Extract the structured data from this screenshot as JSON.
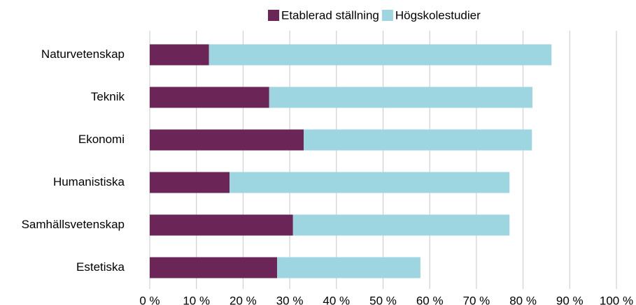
{
  "chart_data": {
    "type": "stacked_barh",
    "categories": [
      "Naturvetenskap",
      "Teknik",
      "Ekonomi",
      "Humanistiska",
      "Samhällsvetenskap",
      "Estetiska"
    ],
    "series": [
      {
        "name": "Etablerad ställning",
        "color": "#6b2657",
        "values": [
          12.7,
          25.6,
          33.0,
          17.1,
          30.7,
          27.3
        ]
      },
      {
        "name": "Högskolestudier",
        "color": "#9dd5e0",
        "values": [
          73.4,
          56.4,
          48.9,
          60.0,
          46.4,
          30.7
        ]
      }
    ],
    "xlim": [
      0,
      100
    ],
    "xticks": [
      {
        "value": 0,
        "label": "0 %"
      },
      {
        "value": 10,
        "label": "10 %"
      },
      {
        "value": 20,
        "label": "20 %"
      },
      {
        "value": 30,
        "label": "30 %"
      },
      {
        "value": 40,
        "label": "40 %"
      },
      {
        "value": 50,
        "label": "50 %"
      },
      {
        "value": 60,
        "label": "60 %"
      },
      {
        "value": 70,
        "label": "70 %"
      },
      {
        "value": 80,
        "label": "80 %"
      },
      {
        "value": 90,
        "label": "90 %"
      },
      {
        "value": 100,
        "label": "100 %"
      }
    ],
    "grid": true,
    "legend": "top"
  }
}
